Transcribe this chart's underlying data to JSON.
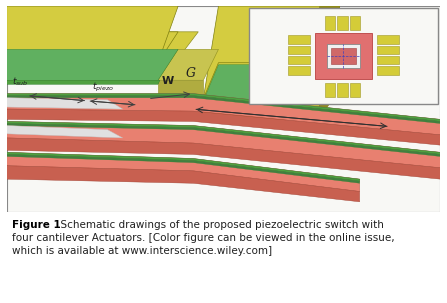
{
  "bg_color": "#ffffff",
  "fig_bg_color": "#f8f8f5",
  "caption_text_bold": "Figure 1",
  "caption_body": "  Schematic drawings of the proposed piezoelectric switch with four cantilever Actuators. [Color figure can be viewed in the online issue, which is available at www.interscience.wiley.com]",
  "caption_fontsize": 7.5,
  "colors": {
    "yellow_top_face": "#d4cc40",
    "yellow_side_face": "#b8b030",
    "yellow_front_face": "#c8c038",
    "yellow_dark_side": "#908820",
    "gap_face": "#c8c450",
    "beam_top": "#e88070",
    "beam_side": "#c86050",
    "beam_dark_side": "#b05040",
    "green_layer": "#50a040",
    "green_dark": "#309030",
    "white_sub": "#e8e8e8",
    "inset_bg": "#f5f5f2",
    "inset_border": "#aaaaaa",
    "pink_body": "#e07070",
    "pink_dark": "#c05050",
    "yellow_inset": "#d4cc38",
    "yellow_inset_dark": "#a09828"
  }
}
